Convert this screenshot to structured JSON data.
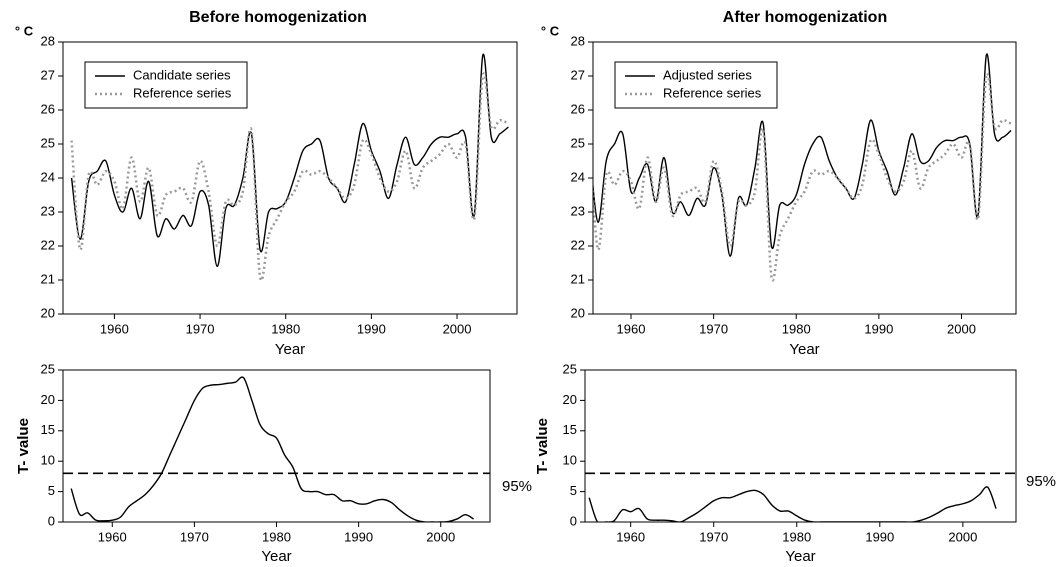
{
  "chart_data": [
    {
      "type": "line",
      "title": "Before homogenization",
      "y_label": "° C",
      "x_label": "Year",
      "x": [
        1955,
        1956,
        1957,
        1958,
        1959,
        1960,
        1961,
        1962,
        1963,
        1964,
        1965,
        1966,
        1967,
        1968,
        1969,
        1970,
        1971,
        1972,
        1973,
        1974,
        1975,
        1976,
        1977,
        1978,
        1979,
        1980,
        1981,
        1982,
        1983,
        1984,
        1985,
        1986,
        1987,
        1988,
        1989,
        1990,
        1991,
        1992,
        1993,
        1994,
        1995,
        1996,
        1997,
        1998,
        1999,
        2000,
        2001,
        2002,
        2003,
        2004,
        2005,
        2006
      ],
      "series": [
        {
          "name": "Candidate series",
          "color": "#000000",
          "style": "solid",
          "values": [
            24.0,
            22.2,
            23.9,
            24.2,
            24.5,
            23.5,
            23.0,
            23.7,
            22.8,
            23.9,
            22.3,
            22.8,
            22.5,
            22.9,
            22.6,
            23.6,
            23.2,
            21.4,
            23.1,
            23.2,
            24.0,
            25.3,
            21.9,
            23.0,
            23.1,
            23.3,
            24.0,
            24.8,
            25.0,
            25.1,
            24.0,
            23.7,
            23.3,
            24.4,
            25.6,
            24.8,
            24.2,
            23.4,
            24.4,
            25.2,
            24.4,
            24.6,
            25.0,
            25.2,
            25.2,
            25.3,
            25.2,
            22.9,
            27.6,
            25.2,
            25.3,
            25.5
          ]
        },
        {
          "name": "Reference series",
          "color": "#999999",
          "style": "dotted",
          "values": [
            25.1,
            21.9,
            24.1,
            23.8,
            24.2,
            23.9,
            23.1,
            24.6,
            23.3,
            24.3,
            22.9,
            23.5,
            23.6,
            23.7,
            23.3,
            24.5,
            23.6,
            22.0,
            23.3,
            23.2,
            23.6,
            25.4,
            21.1,
            22.3,
            22.8,
            23.3,
            23.6,
            24.2,
            24.1,
            24.2,
            24.0,
            23.7,
            23.4,
            23.8,
            25.1,
            24.7,
            24.0,
            23.6,
            23.9,
            24.8,
            23.7,
            24.3,
            24.5,
            24.7,
            25.0,
            24.6,
            25.0,
            22.8,
            27.0,
            25.5,
            25.7,
            25.6
          ]
        }
      ],
      "xlim": [
        1954,
        2007
      ],
      "xticks": [
        1960,
        1970,
        1980,
        1990,
        2000
      ],
      "ylim": [
        20,
        28
      ],
      "yticks": [
        20,
        21,
        22,
        23,
        24,
        25,
        26,
        27,
        28
      ],
      "legend": "upper left"
    },
    {
      "type": "line",
      "title": "After homogenization",
      "y_label": "° C",
      "x_label": "Year",
      "x": [
        1955,
        1956,
        1957,
        1958,
        1959,
        1960,
        1961,
        1962,
        1963,
        1964,
        1965,
        1966,
        1967,
        1968,
        1969,
        1970,
        1971,
        1972,
        1973,
        1974,
        1975,
        1976,
        1977,
        1978,
        1979,
        1980,
        1981,
        1982,
        1983,
        1984,
        1985,
        1986,
        1987,
        1988,
        1989,
        1990,
        1991,
        1992,
        1993,
        1994,
        1995,
        1996,
        1997,
        1998,
        1999,
        2000,
        2001,
        2002,
        2003,
        2004,
        2005,
        2006
      ],
      "series": [
        {
          "name": "Adjusted series",
          "color": "#000000",
          "style": "solid",
          "values": [
            24.8,
            22.7,
            24.5,
            25.0,
            25.3,
            23.6,
            24.0,
            24.4,
            23.3,
            24.6,
            23.0,
            23.3,
            22.9,
            23.4,
            23.2,
            24.3,
            23.5,
            21.7,
            23.4,
            23.2,
            24.3,
            25.6,
            22.0,
            23.2,
            23.2,
            23.5,
            24.4,
            25.0,
            25.2,
            24.5,
            24.0,
            23.7,
            23.4,
            24.4,
            25.7,
            24.8,
            24.2,
            23.5,
            24.3,
            25.3,
            24.5,
            24.5,
            24.9,
            25.1,
            25.1,
            25.2,
            25.0,
            22.9,
            27.6,
            25.3,
            25.2,
            25.4
          ]
        },
        {
          "name": "Reference series",
          "color": "#999999",
          "style": "dotted",
          "values": [
            25.1,
            21.9,
            24.1,
            23.8,
            24.2,
            23.9,
            23.1,
            24.6,
            23.3,
            24.3,
            22.9,
            23.5,
            23.6,
            23.7,
            23.3,
            24.5,
            23.6,
            22.0,
            23.3,
            23.2,
            23.6,
            25.4,
            21.1,
            22.3,
            22.8,
            23.3,
            23.6,
            24.2,
            24.1,
            24.2,
            24.0,
            23.7,
            23.4,
            23.8,
            25.1,
            24.7,
            24.0,
            23.6,
            23.9,
            24.8,
            23.7,
            24.3,
            24.5,
            24.7,
            25.0,
            24.6,
            25.0,
            22.8,
            27.0,
            25.5,
            25.7,
            25.6
          ]
        }
      ],
      "xlim": [
        1955.4,
        2006.6
      ],
      "xticks": [
        1960,
        1970,
        1980,
        1990,
        2000
      ],
      "ylim": [
        20,
        28
      ],
      "yticks": [
        20,
        21,
        22,
        23,
        24,
        25,
        26,
        27,
        28
      ],
      "legend": "upper left"
    },
    {
      "type": "line",
      "y_label": "T- value",
      "x_label": "Year",
      "x": [
        1955,
        1956,
        1957,
        1958,
        1959,
        1960,
        1961,
        1962,
        1963,
        1964,
        1965,
        1966,
        1967,
        1968,
        1969,
        1970,
        1971,
        1972,
        1973,
        1974,
        1975,
        1976,
        1977,
        1978,
        1979,
        1980,
        1981,
        1982,
        1983,
        1984,
        1985,
        1986,
        1987,
        1988,
        1989,
        1990,
        1991,
        1992,
        1993,
        1994,
        1995,
        1996,
        1997,
        1998,
        1999,
        2000,
        2001,
        2002,
        2003,
        2004
      ],
      "values": [
        5.5,
        1.3,
        1.5,
        0.3,
        0.2,
        0.3,
        0.8,
        2.5,
        3.5,
        4.5,
        6.0,
        8.0,
        11,
        14,
        17,
        20,
        22,
        22.5,
        22.6,
        22.8,
        23.0,
        23.7,
        20,
        16,
        14.5,
        13.8,
        11,
        9,
        5.5,
        5,
        5,
        4.5,
        4.5,
        3.5,
        3.5,
        3.0,
        3.0,
        3.5,
        3.7,
        3.2,
        2.0,
        1.0,
        0.3,
        0,
        0,
        0,
        0.1,
        0.5,
        1.2,
        0.5
      ],
      "color": "#000000",
      "threshold": 8,
      "threshold_label": "95%",
      "xlim": [
        1954,
        2006
      ],
      "xticks": [
        1960,
        1970,
        1980,
        1990,
        2000
      ],
      "ylim": [
        0,
        25
      ],
      "yticks": [
        0,
        5,
        10,
        15,
        20,
        25
      ]
    },
    {
      "type": "line",
      "y_label": "T- value",
      "x_label": "Year",
      "x": [
        1955,
        1956,
        1957,
        1958,
        1959,
        1960,
        1961,
        1962,
        1963,
        1964,
        1965,
        1966,
        1967,
        1968,
        1969,
        1970,
        1971,
        1972,
        1973,
        1974,
        1975,
        1976,
        1977,
        1978,
        1979,
        1980,
        1981,
        1982,
        1983,
        1984,
        1985,
        1986,
        1987,
        1988,
        1989,
        1990,
        1991,
        1992,
        1993,
        1994,
        1995,
        1996,
        1997,
        1998,
        1999,
        2000,
        2001,
        2002,
        2003,
        2004
      ],
      "values": [
        4.0,
        0,
        0,
        0.2,
        2.0,
        1.7,
        2.2,
        0.5,
        0.3,
        0.3,
        0.2,
        0,
        0.7,
        1.5,
        2.5,
        3.5,
        4.0,
        4.0,
        4.5,
        5.0,
        5.2,
        4.5,
        2.8,
        1.8,
        1.8,
        1.0,
        0.3,
        0,
        0,
        0,
        0,
        0,
        0,
        0,
        0,
        0,
        0,
        0,
        0,
        0,
        0.3,
        0.8,
        1.5,
        2.3,
        2.7,
        3.0,
        3.5,
        4.5,
        5.7,
        2.2
      ],
      "color": "#000000",
      "threshold": 8,
      "threshold_label": "95%",
      "xlim": [
        1954.5,
        2006.4
      ],
      "xticks": [
        1960,
        1970,
        1980,
        1990,
        2000
      ],
      "ylim": [
        0,
        25
      ],
      "yticks": [
        0,
        5,
        10,
        15,
        20,
        25
      ]
    }
  ]
}
